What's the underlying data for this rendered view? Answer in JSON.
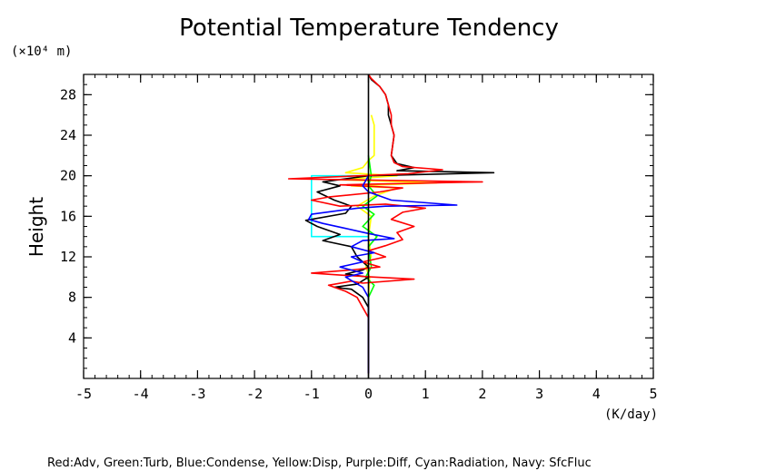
{
  "chart_data": {
    "type": "line",
    "title": "Potential Temperature Tendency",
    "ylabel": "Height",
    "yunit": "(×10⁴ m)",
    "xunit": "(K/day)",
    "footer": "Red:Adv, Green:Turb, Blue:Condense, Yellow:Disp, Purple:Diff, Cyan:Radiation, Navy: SfcFluc",
    "xlim": [
      -5,
      5
    ],
    "ylim": [
      0,
      30
    ],
    "xticks": [
      -5,
      -4,
      -3,
      -2,
      -1,
      0,
      1,
      2,
      3,
      4,
      5
    ],
    "xtick_labels": [
      "-5",
      "-4",
      "-3",
      "-2",
      "-1",
      "0",
      "1",
      "2",
      "3",
      "4",
      "5"
    ],
    "yticks": [
      4,
      8,
      12,
      16,
      20,
      24,
      28
    ],
    "ytick_labels": [
      "4",
      "8",
      "12",
      "16",
      "20",
      "24",
      "28"
    ],
    "series": [
      {
        "color": "#ffff00",
        "points": [
          [
            0,
            8
          ],
          [
            0.02,
            10
          ],
          [
            -0.05,
            11
          ],
          [
            0.05,
            12
          ],
          [
            0,
            14
          ],
          [
            0.05,
            16
          ],
          [
            -0.2,
            17
          ],
          [
            0.1,
            18
          ],
          [
            0.5,
            18.8
          ],
          [
            -0.3,
            19
          ],
          [
            1.2,
            19.3
          ],
          [
            -0.5,
            19.6
          ],
          [
            0.5,
            20
          ],
          [
            -0.4,
            20.3
          ],
          [
            -0.1,
            20.8
          ],
          [
            0,
            21.5
          ],
          [
            0.1,
            22
          ],
          [
            0.1,
            25
          ],
          [
            0.05,
            26
          ]
        ]
      },
      {
        "color": "#00ff00",
        "points": [
          [
            0,
            1
          ],
          [
            0,
            8
          ],
          [
            0.1,
            9.2
          ],
          [
            -0.05,
            10
          ],
          [
            0.05,
            11
          ],
          [
            0,
            13
          ],
          [
            0.15,
            14
          ],
          [
            -0.1,
            15
          ],
          [
            0.1,
            16.2
          ],
          [
            -0.1,
            17
          ],
          [
            0.15,
            18
          ],
          [
            0,
            19
          ],
          [
            0.05,
            20
          ],
          [
            0,
            22
          ]
        ]
      },
      {
        "color": "#00ffff",
        "points": [
          [
            0,
            14
          ],
          [
            -1,
            14
          ],
          [
            -1,
            20
          ],
          [
            0,
            20
          ]
        ]
      },
      {
        "color": "#000000",
        "points": [
          [
            0,
            0.5
          ],
          [
            0,
            7
          ],
          [
            -0.1,
            8
          ],
          [
            -0.3,
            8.8
          ],
          [
            -0.6,
            9
          ],
          [
            -0.2,
            9.3
          ],
          [
            0,
            10
          ],
          [
            -0.4,
            10.3
          ],
          [
            -0.1,
            10.7
          ],
          [
            0,
            11
          ],
          [
            -0.2,
            12
          ],
          [
            -0.3,
            13
          ],
          [
            -0.8,
            13.6
          ],
          [
            -0.5,
            14.2
          ],
          [
            -0.9,
            15
          ],
          [
            -1.1,
            15.6
          ],
          [
            -0.4,
            16.3
          ],
          [
            -0.3,
            17
          ],
          [
            -0.6,
            17.6
          ],
          [
            -0.9,
            18.4
          ],
          [
            -0.5,
            19
          ],
          [
            -0.8,
            19.4
          ],
          [
            0,
            20
          ],
          [
            2.2,
            20.3
          ],
          [
            0.5,
            20.5
          ],
          [
            0.8,
            20.8
          ],
          [
            0.5,
            21.2
          ],
          [
            0.4,
            22
          ],
          [
            0.45,
            24
          ],
          [
            0.4,
            25
          ],
          [
            0.35,
            26
          ],
          [
            0.35,
            27
          ],
          [
            0.3,
            28
          ],
          [
            0.2,
            28.8
          ],
          [
            0.05,
            29.5
          ],
          [
            0,
            30
          ]
        ]
      },
      {
        "color": "#ff0000",
        "points": [
          [
            0,
            0.5
          ],
          [
            0,
            6
          ],
          [
            -0.1,
            7
          ],
          [
            -0.2,
            8
          ],
          [
            -0.4,
            8.6
          ],
          [
            -0.7,
            9.2
          ],
          [
            -0.3,
            9.6
          ],
          [
            -0.1,
            9.4
          ],
          [
            0.8,
            9.8
          ],
          [
            0.1,
            10
          ],
          [
            -0.5,
            10.2
          ],
          [
            -1,
            10.4
          ],
          [
            -0.3,
            10.7
          ],
          [
            0.2,
            11
          ],
          [
            -0.1,
            11.5
          ],
          [
            0.3,
            12
          ],
          [
            0,
            12.6
          ],
          [
            0.3,
            13.1
          ],
          [
            0.6,
            13.7
          ],
          [
            0.5,
            14.4
          ],
          [
            0.8,
            15
          ],
          [
            0.4,
            15.7
          ],
          [
            0.6,
            16.4
          ],
          [
            1,
            16.8
          ],
          [
            0.3,
            17.2
          ],
          [
            -0.5,
            17
          ],
          [
            -1,
            17.6
          ],
          [
            -0.7,
            17.9
          ],
          [
            0.2,
            18.4
          ],
          [
            0.6,
            18.8
          ],
          [
            -0.5,
            19.1
          ],
          [
            2,
            19.4
          ],
          [
            -1.4,
            19.7
          ],
          [
            0.7,
            20.2
          ],
          [
            1.3,
            20.6
          ],
          [
            0.6,
            20.9
          ],
          [
            0.45,
            21.3
          ],
          [
            0.4,
            22
          ],
          [
            0.45,
            24
          ],
          [
            0.4,
            25
          ],
          [
            0.4,
            26
          ],
          [
            0.35,
            27
          ],
          [
            0.3,
            28
          ],
          [
            0.2,
            28.8
          ],
          [
            0.05,
            29.6
          ],
          [
            0,
            30
          ]
        ]
      },
      {
        "color": "#0000ff",
        "points": [
          [
            0,
            0.5
          ],
          [
            0,
            8
          ],
          [
            -0.1,
            9
          ],
          [
            -0.4,
            10
          ],
          [
            -0.1,
            10.4
          ],
          [
            -0.5,
            11
          ],
          [
            -0.1,
            11.5
          ],
          [
            -0.3,
            12
          ],
          [
            0.1,
            12.4
          ],
          [
            -0.3,
            13
          ],
          [
            -0.1,
            13.6
          ],
          [
            0.45,
            13.8
          ],
          [
            0,
            14.3
          ],
          [
            -0.4,
            14.8
          ],
          [
            -0.8,
            15.3
          ],
          [
            -1.05,
            15.7
          ],
          [
            -1,
            16.2
          ],
          [
            -0.2,
            16.8
          ],
          [
            0.3,
            17
          ],
          [
            1.55,
            17.1
          ],
          [
            0.4,
            17.6
          ],
          [
            0,
            18.4
          ],
          [
            -0.1,
            19
          ],
          [
            0,
            20
          ]
        ]
      },
      {
        "color": "#000000",
        "points": [
          [
            0,
            0
          ],
          [
            0,
            30
          ]
        ]
      }
    ]
  }
}
